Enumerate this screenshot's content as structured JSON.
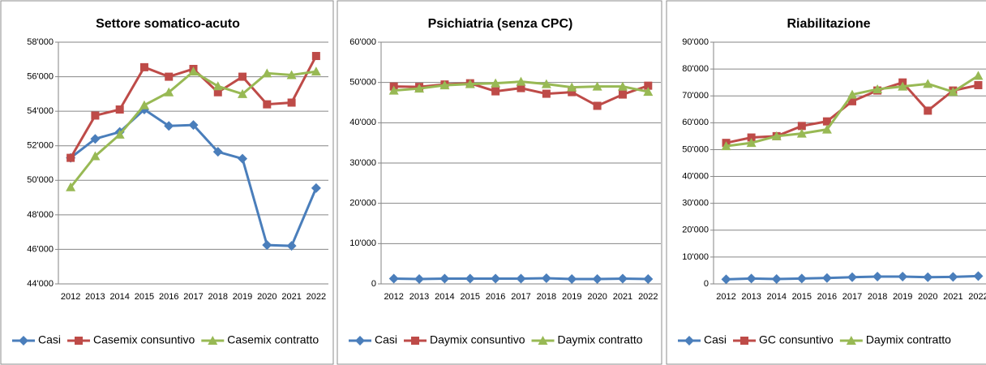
{
  "chart_data": [
    {
      "type": "line",
      "title": "Settore somatico-acuto",
      "categories": [
        "2012",
        "2013",
        "2014",
        "2015",
        "2016",
        "2017",
        "2018",
        "2019",
        "2020",
        "2021",
        "2022"
      ],
      "ylim": [
        44000,
        58000
      ],
      "yticks": [
        {
          "value": 44000,
          "label": "44'000"
        },
        {
          "value": 46000,
          "label": "46'000"
        },
        {
          "value": 48000,
          "label": "48'000"
        },
        {
          "value": 50000,
          "label": "50'000"
        },
        {
          "value": 52000,
          "label": "52'000"
        },
        {
          "value": 54000,
          "label": "54'000"
        },
        {
          "value": 56000,
          "label": "56'000"
        },
        {
          "value": 58000,
          "label": "58'000"
        }
      ],
      "grid": true,
      "series": [
        {
          "name": "Casi",
          "color": "#4a7ebb",
          "values": [
            51300,
            52400,
            52800,
            54100,
            53150,
            53200,
            51650,
            51250,
            46250,
            46200,
            49550
          ]
        },
        {
          "name": "Casemix consuntivo",
          "color": "#be4b48",
          "values": [
            51300,
            53750,
            54100,
            56550,
            56000,
            56450,
            55100,
            56000,
            54400,
            54500,
            57200
          ]
        },
        {
          "name": "Casemix contratto",
          "color": "#98b954",
          "values": [
            49600,
            51400,
            52650,
            54350,
            55100,
            56300,
            55450,
            55000,
            56200,
            56100,
            56300
          ]
        }
      ]
    },
    {
      "type": "line",
      "title": "Psichiatria (senza CPC)",
      "categories": [
        "2012",
        "2013",
        "2014",
        "2015",
        "2016",
        "2017",
        "2018",
        "2019",
        "2020",
        "2021",
        "2022"
      ],
      "ylim": [
        0,
        60000
      ],
      "yticks": [
        0,
        {
          "value": 10000,
          "label": "10'000"
        },
        {
          "value": 20000,
          "label": "20'000"
        },
        {
          "value": 30000,
          "label": "30'000"
        },
        {
          "value": 40000,
          "label": "40'000"
        },
        {
          "value": 50000,
          "label": "50'000"
        },
        {
          "value": 60000,
          "label": "60'000"
        }
      ],
      "grid": true,
      "series": [
        {
          "name": "Casi",
          "color": "#4a7ebb",
          "values": [
            1300,
            1200,
            1300,
            1300,
            1300,
            1300,
            1400,
            1200,
            1200,
            1300,
            1200
          ]
        },
        {
          "name": "Daymix consuntivo",
          "color": "#be4b48",
          "values": [
            49000,
            48900,
            49500,
            49800,
            47800,
            48600,
            47200,
            47600,
            44200,
            47000,
            49200
          ]
        },
        {
          "name": "Daymix contratto",
          "color": "#98b954",
          "values": [
            48000,
            48500,
            49300,
            49600,
            49800,
            50200,
            49600,
            48800,
            49000,
            49000,
            47700
          ]
        }
      ]
    },
    {
      "type": "line",
      "title": "Riabilitazione",
      "categories": [
        "2012",
        "2013",
        "2014",
        "2015",
        "2016",
        "2017",
        "2018",
        "2019",
        "2020",
        "2021",
        "2022"
      ],
      "ylim": [
        0,
        90000
      ],
      "yticks": [
        0,
        {
          "value": 10000,
          "label": "10'000"
        },
        {
          "value": 20000,
          "label": "20'000"
        },
        {
          "value": 30000,
          "label": "30'000"
        },
        {
          "value": 40000,
          "label": "40'000"
        },
        {
          "value": 50000,
          "label": "50'000"
        },
        {
          "value": 60000,
          "label": "60'000"
        },
        {
          "value": 70000,
          "label": "70'000"
        },
        {
          "value": 80000,
          "label": "80'000"
        },
        {
          "value": 90000,
          "label": "90'000"
        }
      ],
      "grid": true,
      "series": [
        {
          "name": "Casi",
          "color": "#4a7ebb",
          "values": [
            1700,
            2000,
            1800,
            2000,
            2200,
            2500,
            2700,
            2700,
            2500,
            2600,
            2900
          ]
        },
        {
          "name": "GC consuntivo",
          "color": "#be4b48",
          "values": [
            52500,
            54500,
            55000,
            58800,
            60500,
            68000,
            72000,
            75000,
            64500,
            72000,
            74000
          ]
        },
        {
          "name": "Daymix contratto",
          "color": "#98b954",
          "values": [
            51300,
            52500,
            55000,
            56000,
            57500,
            70500,
            72500,
            73500,
            74500,
            71500,
            77500
          ]
        }
      ]
    }
  ]
}
